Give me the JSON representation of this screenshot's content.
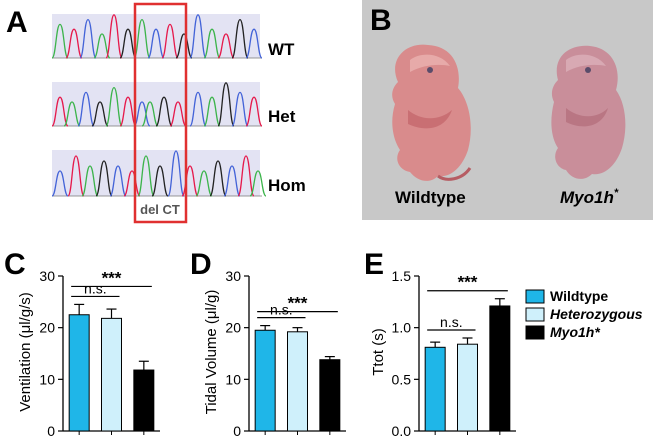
{
  "panel_a": {
    "letter": "A",
    "rows": [
      {
        "label": "WT"
      },
      {
        "label": "Het"
      },
      {
        "label": "Hom"
      }
    ],
    "deletion_label": "del CT",
    "trace_colors": {
      "a": "#3cb44b",
      "b": "#e6194b",
      "c": "#4363d8",
      "d": "#222222"
    },
    "highlight_color": "#e03030"
  },
  "panel_b": {
    "letter": "B",
    "left_label": "Wildtype",
    "right_label": "Myo1h",
    "right_label_superscript": "*",
    "background": "#c8c8c8"
  },
  "legend": {
    "items": [
      {
        "name": "Wildtype",
        "color": "#1fb6e8",
        "italic": false
      },
      {
        "name": "Heterozygous",
        "color": "#cff0fb",
        "italic": true
      },
      {
        "name": "Myo1h*",
        "color": "#000000",
        "italic": true
      }
    ]
  },
  "chart_data": [
    {
      "panel": "C",
      "type": "bar",
      "ylabel": "Ventilation (μl/g/s)",
      "ylim": [
        0,
        30
      ],
      "yticks": [
        "0",
        "10",
        "20",
        "30"
      ],
      "categories": [
        "Wildtype",
        "Heterozygous",
        "Myo1h*"
      ],
      "values": [
        22.5,
        21.8,
        11.8
      ],
      "errors": [
        2.0,
        1.8,
        1.7
      ],
      "annotations": [
        {
          "text": "n.s.",
          "from": 0,
          "to": 1
        },
        {
          "text": "***",
          "from": 0,
          "to": 2
        }
      ]
    },
    {
      "panel": "D",
      "type": "bar",
      "ylabel": "Tidal Volume (μl/g)",
      "ylim": [
        0,
        30
      ],
      "yticks": [
        "0",
        "10",
        "20",
        "30"
      ],
      "categories": [
        "Wildtype",
        "Heterozygous",
        "Myo1h*"
      ],
      "values": [
        19.5,
        19.2,
        13.8
      ],
      "errors": [
        0.9,
        0.8,
        0.6
      ],
      "annotations": [
        {
          "text": "n.s.",
          "from": 0,
          "to": 1
        },
        {
          "text": "***",
          "from": 0,
          "to": 2
        }
      ]
    },
    {
      "panel": "E",
      "type": "bar",
      "ylabel": "Ttot (s)",
      "ylim": [
        0,
        1.5
      ],
      "yticks": [
        "0.0",
        "0.5",
        "1.0",
        "1.5"
      ],
      "categories": [
        "Wildtype",
        "Heterozygous",
        "Myo1h*"
      ],
      "values": [
        0.81,
        0.84,
        1.21
      ],
      "errors": [
        0.05,
        0.06,
        0.07
      ],
      "annotations": [
        {
          "text": "n.s.",
          "from": 0,
          "to": 1
        },
        {
          "text": "***",
          "from": 0,
          "to": 2
        }
      ]
    }
  ]
}
